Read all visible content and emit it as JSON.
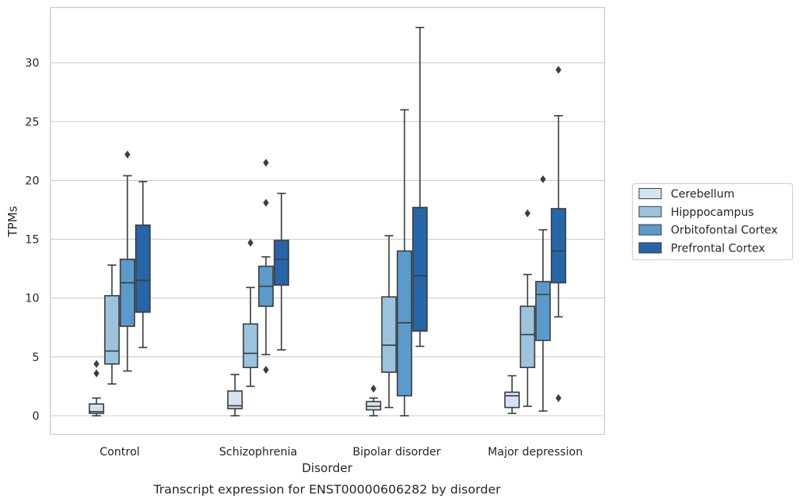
{
  "caption": "Transcript expression for ENST00000606282 by disorder",
  "chart_data": {
    "type": "box",
    "xlabel": "Disorder",
    "ylabel": "TPMs",
    "ylim": [
      -1.6,
      34.5
    ],
    "yticks": [
      0,
      5,
      10,
      15,
      20,
      25,
      30
    ],
    "grid": "horizontal",
    "legend_position": "right",
    "categories": [
      "Control",
      "Schizophrenia",
      "Bipolar disorder",
      "Major depression"
    ],
    "series": [
      {
        "name": "Cerebellum",
        "color": "#d4e3f2",
        "boxes": [
          {
            "whisker_low": 0.0,
            "q1": 0.2,
            "median": 0.35,
            "q3": 1.0,
            "whisker_high": 1.5,
            "outliers": [
              3.6,
              4.4
            ]
          },
          {
            "whisker_low": 0.0,
            "q1": 0.6,
            "median": 0.85,
            "q3": 2.1,
            "whisker_high": 3.5,
            "outliers": []
          },
          {
            "whisker_low": 0.0,
            "q1": 0.5,
            "median": 0.8,
            "q3": 1.2,
            "whisker_high": 1.5,
            "outliers": [
              2.3
            ]
          },
          {
            "whisker_low": 0.2,
            "q1": 0.7,
            "median": 1.7,
            "q3": 2.0,
            "whisker_high": 3.4,
            "outliers": []
          }
        ]
      },
      {
        "name": "Hipppocampus",
        "color": "#9cc3de",
        "boxes": [
          {
            "whisker_low": 2.7,
            "q1": 4.4,
            "median": 5.5,
            "q3": 10.2,
            "whisker_high": 12.8,
            "outliers": []
          },
          {
            "whisker_low": 2.5,
            "q1": 4.1,
            "median": 5.3,
            "q3": 7.8,
            "whisker_high": 10.9,
            "outliers": [
              14.7
            ]
          },
          {
            "whisker_low": 0.7,
            "q1": 3.7,
            "median": 6.0,
            "q3": 10.1,
            "whisker_high": 15.3,
            "outliers": []
          },
          {
            "whisker_low": 0.8,
            "q1": 4.1,
            "median": 6.9,
            "q3": 9.3,
            "whisker_high": 12.0,
            "outliers": [
              17.2
            ]
          }
        ]
      },
      {
        "name": "Orbitofontal Cortex",
        "color": "#5a9bcb",
        "boxes": [
          {
            "whisker_low": 3.8,
            "q1": 7.6,
            "median": 11.3,
            "q3": 13.3,
            "whisker_high": 20.4,
            "outliers": [
              22.2
            ]
          },
          {
            "whisker_low": 5.2,
            "q1": 9.3,
            "median": 11.0,
            "q3": 12.7,
            "whisker_high": 13.5,
            "outliers": [
              3.9,
              18.1,
              21.5
            ]
          },
          {
            "whisker_low": 0.0,
            "q1": 1.7,
            "median": 7.9,
            "q3": 14.0,
            "whisker_high": 26.0,
            "outliers": []
          },
          {
            "whisker_low": 0.4,
            "q1": 6.4,
            "median": 10.3,
            "q3": 11.4,
            "whisker_high": 15.8,
            "outliers": [
              20.1
            ]
          }
        ]
      },
      {
        "name": "Prefrontal Cortex",
        "color": "#2665a8",
        "boxes": [
          {
            "whisker_low": 5.8,
            "q1": 8.8,
            "median": 11.5,
            "q3": 16.2,
            "whisker_high": 19.9,
            "outliers": []
          },
          {
            "whisker_low": 5.6,
            "q1": 11.1,
            "median": 13.3,
            "q3": 14.9,
            "whisker_high": 18.9,
            "outliers": []
          },
          {
            "whisker_low": 5.9,
            "q1": 7.2,
            "median": 11.9,
            "q3": 17.7,
            "whisker_high": 33.0,
            "outliers": []
          },
          {
            "whisker_low": 8.4,
            "q1": 11.3,
            "median": 14.0,
            "q3": 17.6,
            "whisker_high": 25.5,
            "outliers": [
              1.5,
              29.4
            ]
          }
        ]
      }
    ]
  }
}
